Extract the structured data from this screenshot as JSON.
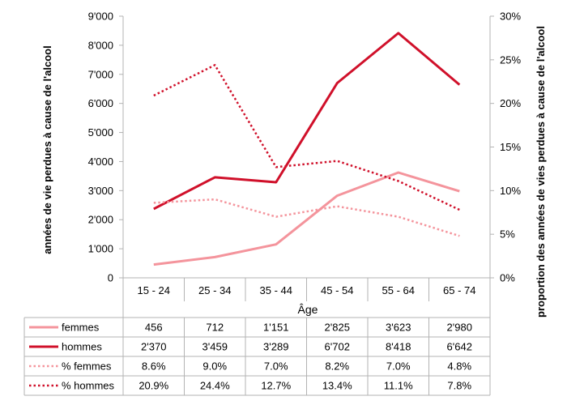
{
  "chart_data": {
    "type": "line",
    "categories": [
      "15 - 24",
      "25 - 34",
      "35 - 44",
      "45 - 54",
      "55 - 64",
      "65 - 74"
    ],
    "xlabel": "Âge",
    "ylabel_left": "années de vie perdues à cause de l'alcool",
    "ylabel_right": "proportion des années de vies perdues à cause de l'alcool",
    "ylim_left": [
      0,
      9000
    ],
    "ylim_right": [
      0,
      30
    ],
    "yticks_left": [
      "0",
      "1'000",
      "2'000",
      "3'000",
      "4'000",
      "5'000",
      "6'000",
      "7'000",
      "8'000",
      "9'000"
    ],
    "yticks_right": [
      "0%",
      "5%",
      "10%",
      "15%",
      "20%",
      "25%",
      "30%"
    ],
    "grid": false,
    "legend": "data-table",
    "series": [
      {
        "name": "femmes",
        "axis": "left",
        "style": "solid",
        "color": "#f4949c",
        "values": [
          456,
          712,
          1151,
          2825,
          3623,
          2980
        ],
        "labels": [
          "456",
          "712",
          "1'151",
          "2'825",
          "3'623",
          "2'980"
        ]
      },
      {
        "name": "hommes",
        "axis": "left",
        "style": "solid",
        "color": "#d0102a",
        "values": [
          2370,
          3459,
          3289,
          6702,
          8418,
          6642
        ],
        "labels": [
          "2'370",
          "3'459",
          "3'289",
          "6'702",
          "8'418",
          "6'642"
        ]
      },
      {
        "name": "% femmes",
        "axis": "right",
        "style": "dotted",
        "color": "#f4949c",
        "values": [
          8.6,
          9.0,
          7.0,
          8.2,
          7.0,
          4.8
        ],
        "labels": [
          "8.6%",
          "9.0%",
          "7.0%",
          "8.2%",
          "7.0%",
          "4.8%"
        ]
      },
      {
        "name": "% hommes",
        "axis": "right",
        "style": "dotted",
        "color": "#d0102a",
        "values": [
          20.9,
          24.4,
          12.7,
          13.4,
          11.1,
          7.8
        ],
        "labels": [
          "20.9%",
          "24.4%",
          "12.7%",
          "13.4%",
          "11.1%",
          "7.8%"
        ]
      }
    ]
  }
}
